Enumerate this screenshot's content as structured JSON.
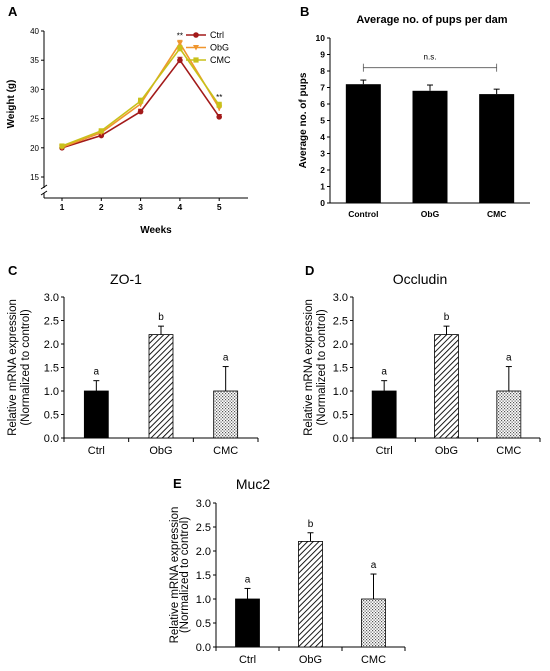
{
  "chart_data": [
    {
      "id": "A",
      "type": "line",
      "panel": "A",
      "title": "",
      "xlabel": "Weeks",
      "ylabel": "Weight (g)",
      "x": [
        1,
        2,
        3,
        4,
        5
      ],
      "xticks": [
        "1",
        "2",
        "3",
        "4",
        "5"
      ],
      "yticks": [
        "15",
        "20",
        "25",
        "30",
        "35",
        "40"
      ],
      "ylim": [
        15,
        40
      ],
      "axis_break": true,
      "series": [
        {
          "name": "Ctrl",
          "color": "#a31a1a",
          "marker": "circle",
          "values": [
            20.0,
            22.1,
            26.2,
            35.0,
            25.3
          ],
          "errors": [
            0.3,
            0.3,
            0.4,
            0.5,
            0.4
          ]
        },
        {
          "name": "ObG",
          "color": "#f0962e",
          "marker": "triangle-down",
          "values": [
            20.1,
            22.6,
            27.5,
            37.9,
            26.8
          ],
          "errors": [
            0.3,
            0.3,
            0.5,
            0.5,
            0.5
          ]
        },
        {
          "name": "CMC",
          "color": "#c8c11a",
          "marker": "square",
          "values": [
            20.3,
            22.9,
            28.0,
            37.0,
            27.3
          ],
          "errors": [
            0.3,
            0.3,
            0.5,
            0.5,
            0.5
          ]
        }
      ],
      "annotations": [
        {
          "x": 4,
          "text": "**"
        },
        {
          "x": 5,
          "text": "**"
        }
      ],
      "legend": "top-right"
    },
    {
      "id": "B",
      "type": "bar",
      "panel": "B",
      "title": "Average no. of pups per dam",
      "xlabel": "",
      "ylabel": "Average no. of pups",
      "categories": [
        "Control",
        "ObG",
        "CMC"
      ],
      "values": [
        7.2,
        6.8,
        6.6
      ],
      "errors": [
        0.25,
        0.35,
        0.3
      ],
      "yticks": [
        "0",
        "1",
        "2",
        "3",
        "4",
        "5",
        "6",
        "7",
        "8",
        "9",
        "10"
      ],
      "ylim": [
        0,
        10
      ],
      "bracket": {
        "from": 0,
        "to": 2,
        "y": 8.2,
        "text": "n.s."
      }
    },
    {
      "id": "C",
      "type": "bar",
      "panel": "C",
      "title": "ZO-1",
      "xlabel": "",
      "ylabel": "Relative mRNA expression (Normalized to control)",
      "ylabel_lines": [
        "Relative mRNA expression",
        "(Normalized to control)"
      ],
      "categories": [
        "Ctrl",
        "ObG",
        "CMC"
      ],
      "values": [
        1.0,
        2.2,
        1.0
      ],
      "errors": [
        0.22,
        0.18,
        0.52
      ],
      "letters": [
        "a",
        "b",
        "a"
      ],
      "yticks": [
        "0.0",
        "0.5",
        "1.0",
        "1.5",
        "2.0",
        "2.5",
        "3.0"
      ],
      "ylim": [
        0,
        3
      ]
    },
    {
      "id": "D",
      "type": "bar",
      "panel": "D",
      "title": "Occludin",
      "xlabel": "",
      "ylabel": "Relative mRNA expression (Normalized to control)",
      "ylabel_lines": [
        "Relative mRNA expression",
        "(Normalized to control)"
      ],
      "categories": [
        "Ctrl",
        "ObG",
        "CMC"
      ],
      "values": [
        1.0,
        2.2,
        1.0
      ],
      "errors": [
        0.22,
        0.18,
        0.52
      ],
      "letters": [
        "a",
        "b",
        "a"
      ],
      "yticks": [
        "0.0",
        "0.5",
        "1.0",
        "1.5",
        "2.0",
        "2.5",
        "3.0"
      ],
      "ylim": [
        0,
        3
      ]
    },
    {
      "id": "E",
      "type": "bar",
      "panel": "E",
      "title": "Muc2",
      "xlabel": "",
      "ylabel": "Relative mRNA expression (Normalized to control)",
      "ylabel_lines": [
        "Relative mRNA expression",
        "(Normalized to control)"
      ],
      "categories": [
        "Ctrl",
        "ObG",
        "CMC"
      ],
      "values": [
        1.0,
        2.2,
        1.0
      ],
      "errors": [
        0.22,
        0.18,
        0.52
      ],
      "letters": [
        "a",
        "b",
        "a"
      ],
      "yticks": [
        "0.0",
        "0.5",
        "1.0",
        "1.5",
        "2.0",
        "2.5",
        "3.0"
      ],
      "ylim": [
        0,
        3
      ]
    }
  ]
}
